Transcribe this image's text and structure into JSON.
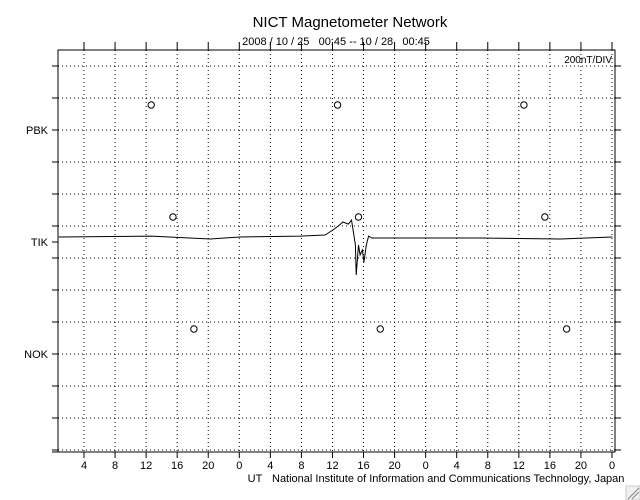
{
  "chart_data": {
    "type": "line",
    "title": "NICT Magnetometer Network",
    "subtitle": "2008 / 10 / 25   00:45 -- 10 / 28   00:45",
    "scale_label": "200nT/DIV",
    "nT_per_div": 200,
    "xlabel": "UT",
    "xlim_hours": [
      0,
      72
    ],
    "start_hour_offset": 0.75,
    "x_tick_labels": [
      "4",
      "8",
      "12",
      "16",
      "20",
      "0",
      "4",
      "8",
      "12",
      "16",
      "20",
      "0",
      "4",
      "8",
      "12",
      "16",
      "20",
      "0"
    ],
    "stations": [
      {
        "name": "PBK",
        "noon_markers_hours": [
          11.9,
          35.9,
          59.9
        ]
      },
      {
        "name": "TIK",
        "noon_markers_hours": [
          14.7,
          38.6,
          62.6
        ]
      },
      {
        "name": "NOK",
        "noon_markers_hours": [
          17.4,
          41.4,
          65.4
        ]
      }
    ],
    "grid": true,
    "series": [
      {
        "name": "TIK",
        "x_hours": [
          0,
          11.9,
          19.5,
          23.3,
          31.1,
          34.3,
          35.3,
          36.0,
          36.6,
          37.3,
          37.7,
          37.9,
          38.2,
          38.3,
          38.6,
          38.8,
          39.1,
          39.3,
          39.6,
          39.9,
          40.3,
          46.5,
          54.2,
          64.6,
          71.3
        ],
        "nT": [
          31,
          37,
          19,
          31,
          37,
          44,
          75,
          100,
          125,
          112,
          137,
          75,
          -19,
          -206,
          -19,
          -81,
          -50,
          -125,
          -19,
          37,
          25,
          25,
          25,
          19,
          31
        ]
      }
    ]
  },
  "footer": {
    "credit": "National Institute of Information and Communications Technology, Japan"
  }
}
